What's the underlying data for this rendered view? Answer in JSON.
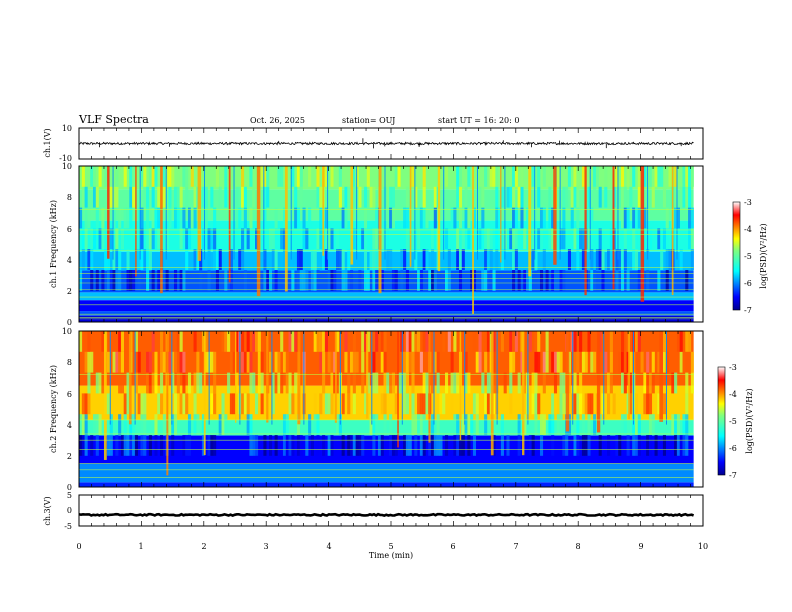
{
  "header": {
    "title": "VLF Spectra",
    "date": "Oct. 26, 2025",
    "station": "station= OUJ",
    "start": "start  UT =   16: 20: 0"
  },
  "chart_data": [
    {
      "type": "line",
      "name": "ch.1 waveform",
      "ylabel": "ch.1(V)",
      "ylim": [
        -10,
        10
      ],
      "y_ticks": [
        "10",
        "-10"
      ],
      "baseline": 0,
      "noise_amplitude": 0.8,
      "spikes": [
        {
          "t": 0.33,
          "v": -2.6
        },
        {
          "t": 1.45,
          "v": -2.2
        },
        {
          "t": 3.2,
          "v": 1.8
        },
        {
          "t": 4.55,
          "v": 3.6
        },
        {
          "t": 4.72,
          "v": -3.4
        },
        {
          "t": 4.9,
          "v": -2.0
        },
        {
          "t": 5.45,
          "v": -2.4
        },
        {
          "t": 6.8,
          "v": 2.2
        },
        {
          "t": 7.25,
          "v": -2.6
        },
        {
          "t": 7.7,
          "v": 2.0
        },
        {
          "t": 8.45,
          "v": -3.2
        },
        {
          "t": 9.65,
          "v": -1.8
        }
      ]
    },
    {
      "type": "heatmap",
      "name": "ch.1 spectrogram",
      "ylabel": "ch.1 Frequency (kHz)",
      "ylim": [
        0,
        10
      ],
      "y_ticks": [
        "0",
        "2",
        "4",
        "6",
        "8",
        "10"
      ],
      "colorbar": {
        "label": "log(PSD)(V²/Hz)",
        "min": -7,
        "max": -3,
        "ticks": [
          "-3",
          "-4",
          "-5",
          "-6",
          "-7"
        ]
      },
      "bands": [
        {
          "f0": 0.0,
          "f1": 0.4,
          "level": 0.08
        },
        {
          "f0": 0.4,
          "f1": 0.7,
          "level": 0.2
        },
        {
          "f0": 0.7,
          "f1": 1.4,
          "level": 0.12
        },
        {
          "f0": 1.4,
          "f1": 1.9,
          "level": 0.3
        },
        {
          "f0": 1.9,
          "f1": 3.3,
          "level": 0.2
        },
        {
          "f0": 3.3,
          "f1": 4.5,
          "level": 0.3
        },
        {
          "f0": 4.5,
          "f1": 6.5,
          "level": 0.4
        },
        {
          "f0": 6.5,
          "f1": 8.5,
          "level": 0.5
        },
        {
          "f0": 8.5,
          "f1": 10.0,
          "level": 0.55
        }
      ],
      "lines_khz": [
        0.2,
        0.3,
        0.5,
        1.1,
        1.6,
        2.1,
        2.5,
        2.8,
        3.1,
        3.5,
        4.6,
        5.6,
        5.9,
        7.2
      ],
      "burst_times_min": [
        0.45,
        0.9,
        1.3,
        1.9,
        2.4,
        2.85,
        3.3,
        3.9,
        4.35,
        4.8,
        5.3,
        5.75,
        6.3,
        6.75,
        7.2,
        7.6,
        8.1,
        8.55,
        9.0,
        9.5
      ]
    },
    {
      "type": "heatmap",
      "name": "ch.2 spectrogram",
      "ylabel": "ch.2 Frequency (kHz)",
      "ylim": [
        0,
        10
      ],
      "y_ticks": [
        "0",
        "2",
        "4",
        "6",
        "8",
        "10"
      ],
      "colorbar": {
        "label": "log(PSD)(V²/Hz)",
        "min": -7,
        "max": -3,
        "ticks": [
          "-3",
          "-4",
          "-5",
          "-6",
          "-7"
        ]
      },
      "bands": [
        {
          "f0": 0.0,
          "f1": 0.3,
          "level": 0.15
        },
        {
          "f0": 0.3,
          "f1": 1.5,
          "level": 0.25
        },
        {
          "f0": 1.5,
          "f1": 3.3,
          "level": 0.12
        },
        {
          "f0": 3.3,
          "f1": 4.3,
          "level": 0.45
        },
        {
          "f0": 4.3,
          "f1": 6.5,
          "level": 0.7
        },
        {
          "f0": 6.5,
          "f1": 10.0,
          "level": 0.8
        }
      ],
      "lines_khz": [
        0.6,
        1.1,
        1.5,
        2.4,
        3.0,
        3.4,
        4.3,
        7.2
      ],
      "burst_times_min": [
        0.4,
        0.8,
        1.4,
        2.0,
        2.5,
        3.0,
        3.5,
        4.1,
        4.6,
        5.1,
        5.6,
        6.1,
        6.6,
        7.1,
        7.8,
        8.3,
        8.8,
        9.3
      ]
    },
    {
      "type": "line",
      "name": "ch.3 waveform",
      "ylabel": "ch.3(V)",
      "ylim": [
        -5,
        5
      ],
      "y_ticks": [
        "5",
        "0",
        "-5"
      ],
      "baseline": -1.5,
      "noise_amplitude": 0.25
    }
  ],
  "x_axis": {
    "label": "Time (min)",
    "range": [
      0,
      10
    ],
    "ticks": [
      "0",
      "1",
      "2",
      "3",
      "4",
      "5",
      "6",
      "7",
      "8",
      "9",
      "10"
    ]
  }
}
